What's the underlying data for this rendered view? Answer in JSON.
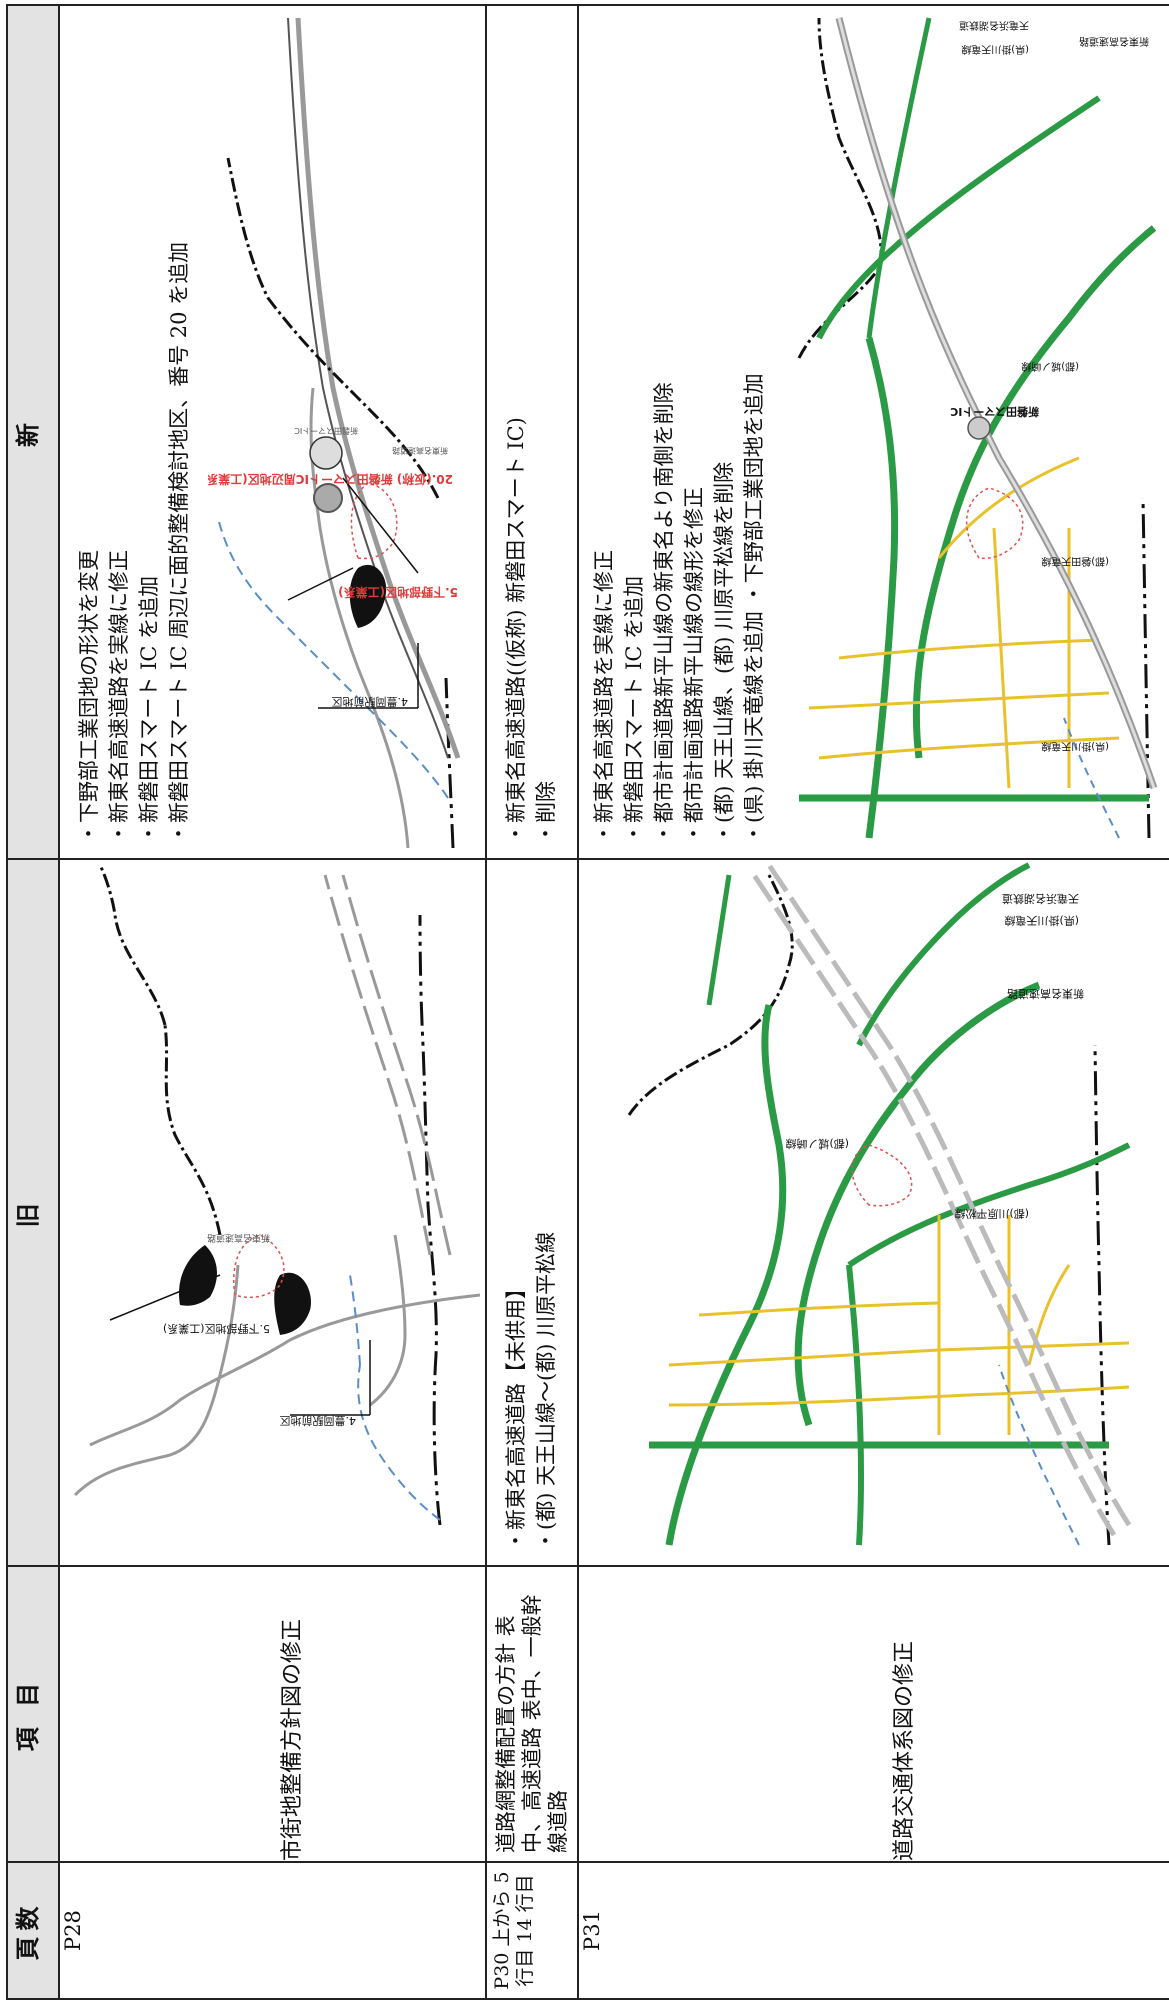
{
  "headers": {
    "page": "頁数",
    "item": "項 目",
    "old": "旧",
    "new": "新"
  },
  "rows": [
    {
      "page": "P28",
      "item": "市街地整備方針図の修正",
      "old_map": {
        "label_1": "4.豊岡駅前地区",
        "label_2": "5.下野部地区(工業系)",
        "label_3": "新東名高速道路"
      },
      "new_texts": [
        "・下野部工業団地の形状を変更",
        "・新東名高速道路を実線に修正",
        "・新磐田スマート IC を追加",
        "・新磐田スマート IC 周辺に面的整備検討地区、番号 20 を追加"
      ],
      "new_map": {
        "label_1": "4.豊岡駅前地区",
        "label_2": "5.下野部地区(工業系)",
        "label_3": "20.(仮称) 新磐田スマートIC周辺地区(工業系)",
        "label_4": "新東名高速道路",
        "label_5": "新磐田スマートIC"
      }
    },
    {
      "page": "P30 上から 5 行目 14 行目",
      "item": "道路網整備配置の方針 表中、高速道路 表中、一般幹線道路",
      "old_texts": [
        "・新東名高速道路【未供用】",
        "・(都) 天王山線～(都) 川原平松線"
      ],
      "new_texts": [
        "・新東名高速道路((仮称) 新磐田スマート IC)",
        "・削除"
      ]
    },
    {
      "page": "P31",
      "item": "道路交通体系図の修正",
      "old_map": {
        "label_1": "新東名高速道路",
        "label_2": "(県)掛川天竜線",
        "label_3": "天竜浜名湖鉄道",
        "label_4": "(都)川原平松線",
        "label_5": "(都)城ノ崎線"
      },
      "new_texts": [
        "・新東名高速道路を実線に修正",
        "・新磐田スマート IC を追加",
        "・都市計画道路新平山線の新東名より南側を削除",
        "・都市計画道路新平山線の線形を修正",
        "・(都) 天王山線、(都) 川原平松線を削除",
        "・(県) 掛川天竜線を追加 ・下野部工業団地を追加"
      ],
      "new_map": {
        "label_1": "新東名高速道路",
        "label_2": "新磐田スマートIC",
        "label_3": "(県)掛川天竜線",
        "label_4": "天竜浜名湖鉄道",
        "label_5": "(都)城ノ崎線",
        "label_6": "(県)掛川天竜線",
        "label_7": "(都)磐田天竜線"
      }
    }
  ]
}
